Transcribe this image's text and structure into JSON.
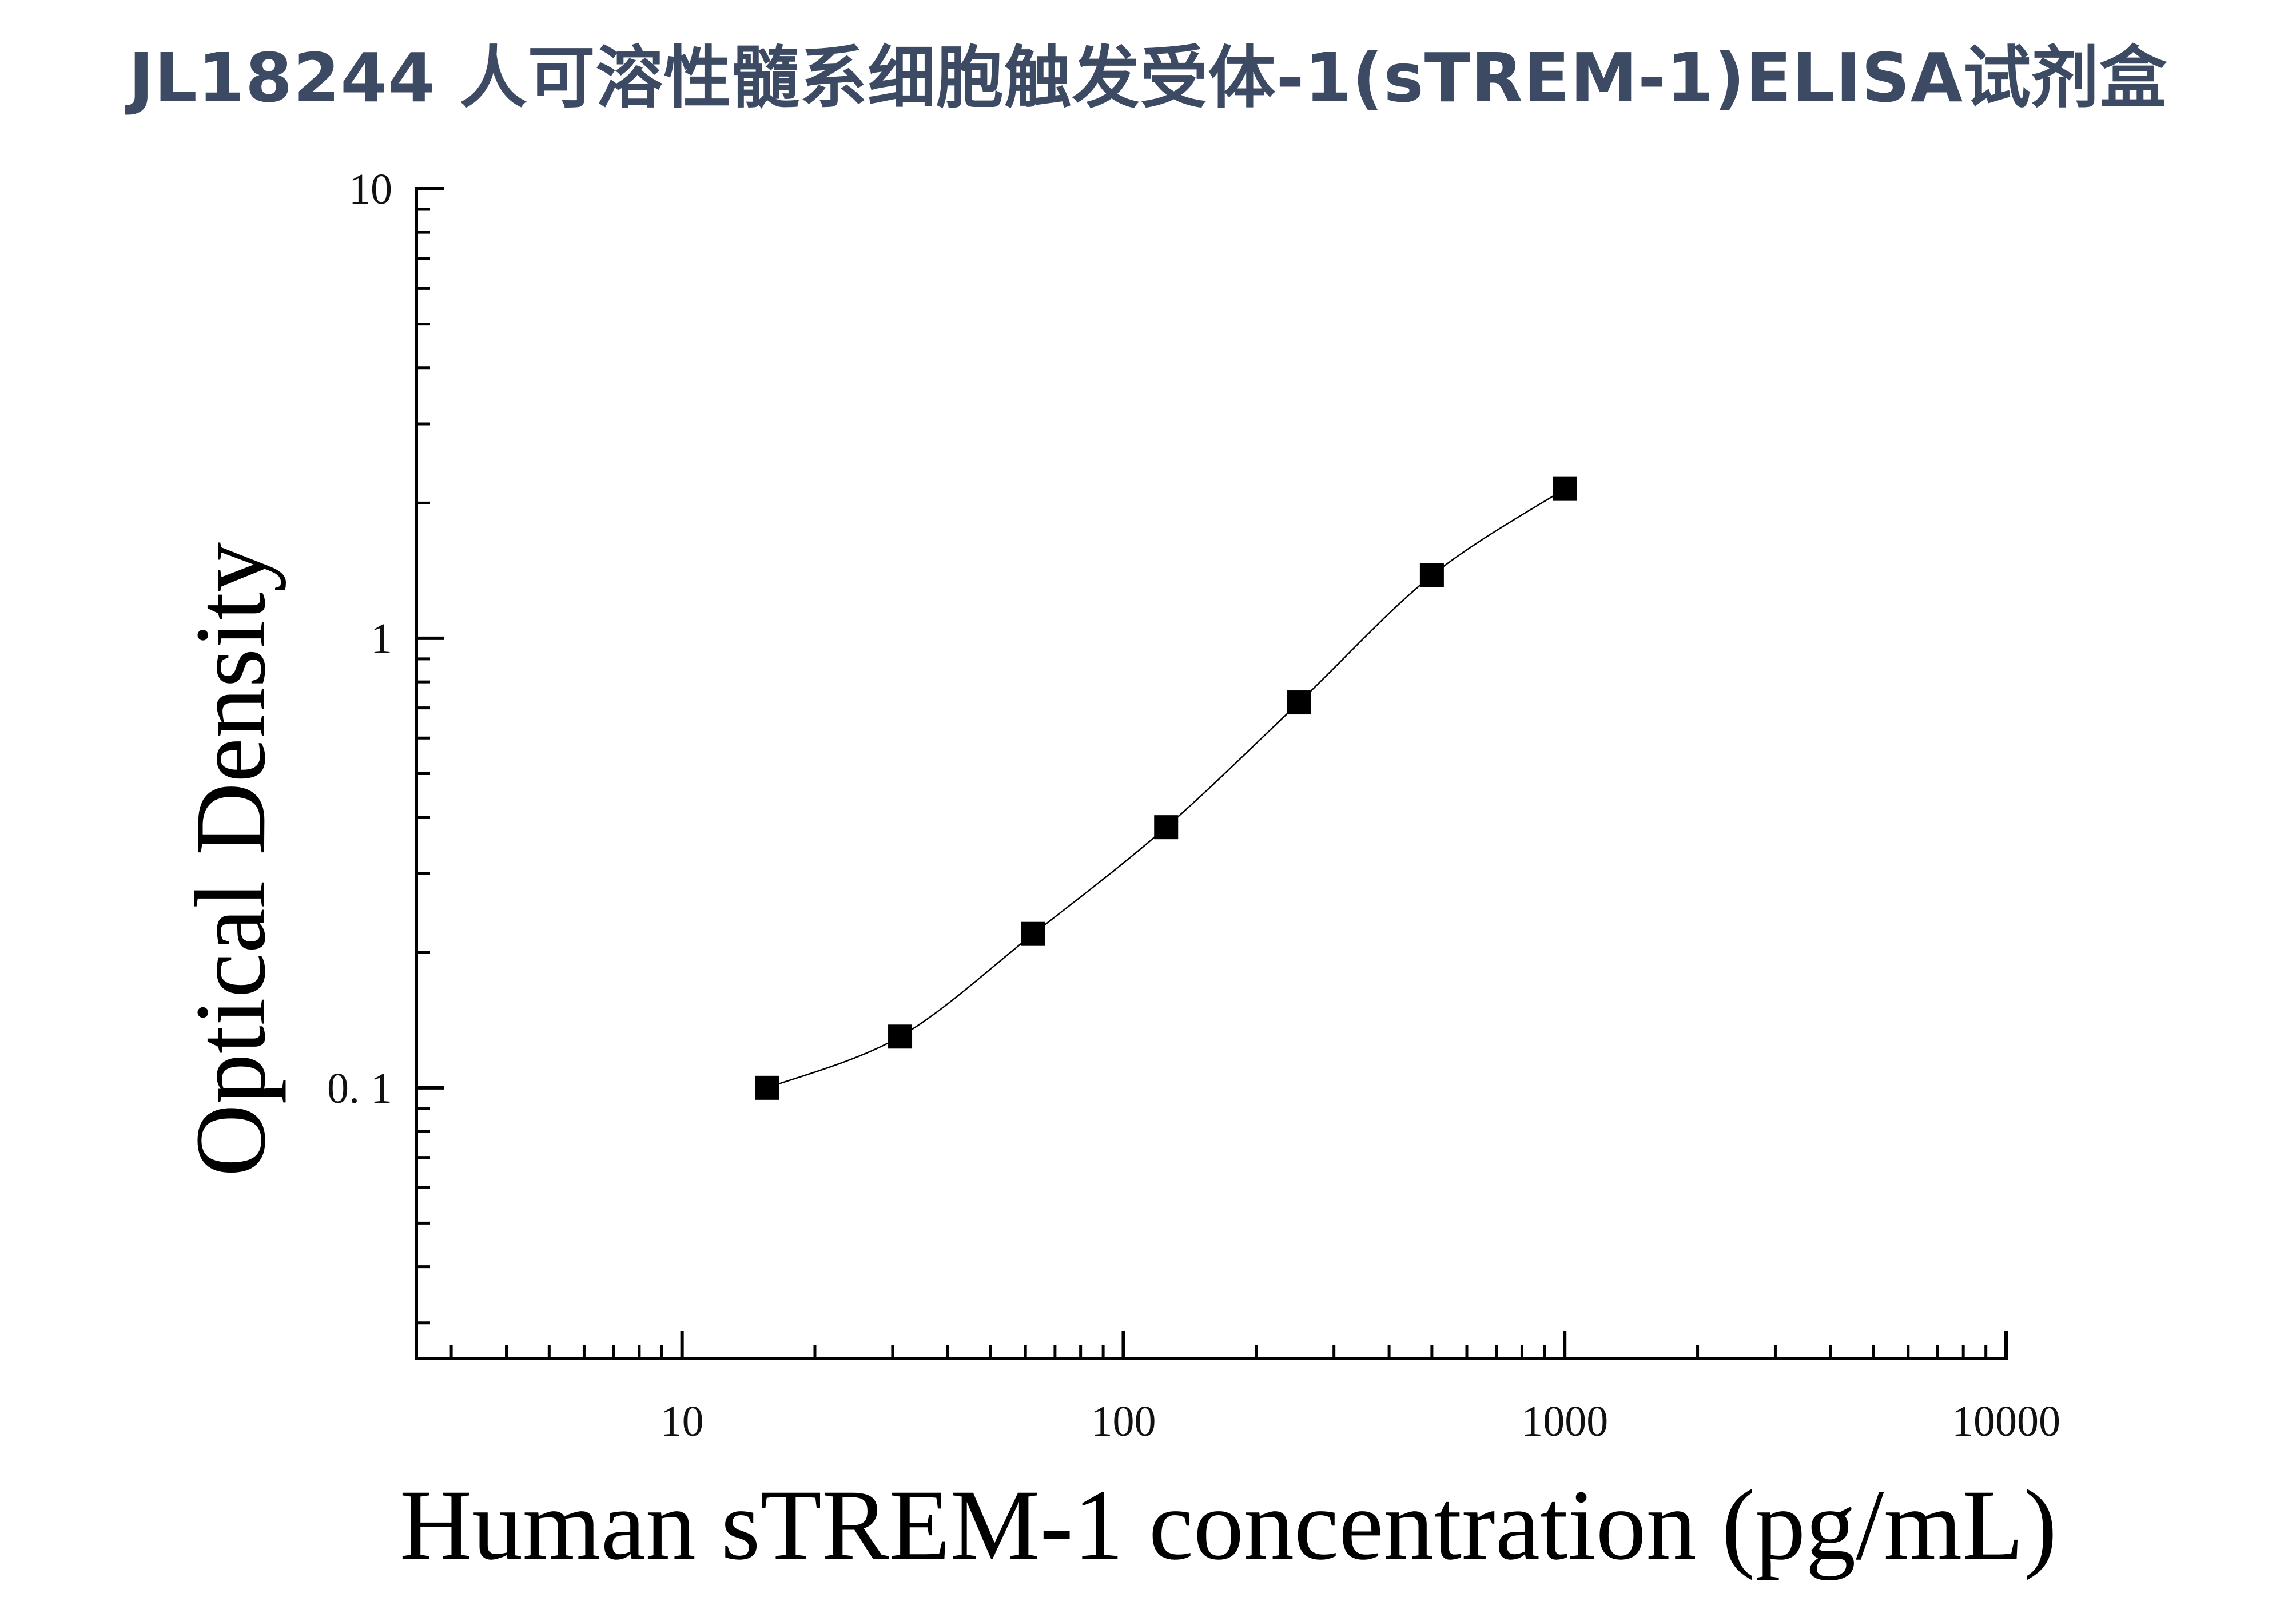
{
  "chart_data": {
    "type": "scatter",
    "title": "JL18244 人可溶性髓系细胞触发受体-1(sTREM-1)ELISA试剂盒",
    "xlabel": "Human sTREM-1 concentration (pg/mL)",
    "ylabel": "Optical Density",
    "x_scale": "log",
    "y_scale": "log",
    "xlim": [
      2.5,
      10000
    ],
    "ylim": [
      0.025,
      10
    ],
    "x_ticks": [
      {
        "value": 10,
        "label": "10"
      },
      {
        "value": 100,
        "label": "100"
      },
      {
        "value": 1000,
        "label": "1000"
      },
      {
        "value": 10000,
        "label": "10000"
      }
    ],
    "y_ticks": [
      {
        "value": 10,
        "label": "10"
      },
      {
        "value": 1,
        "label": "1"
      },
      {
        "value": 0.1,
        "label": "0. 1"
      }
    ],
    "grid": false,
    "series": [
      {
        "marker": "square",
        "color": "#000000",
        "x": [
          15.6,
          31.2,
          62.5,
          125,
          250,
          500,
          1000
        ],
        "y": [
          0.1,
          0.13,
          0.22,
          0.38,
          0.72,
          1.38,
          2.15
        ]
      }
    ],
    "fit_curve": {
      "type": "four-parameter-logistic",
      "color": "#000000"
    }
  }
}
